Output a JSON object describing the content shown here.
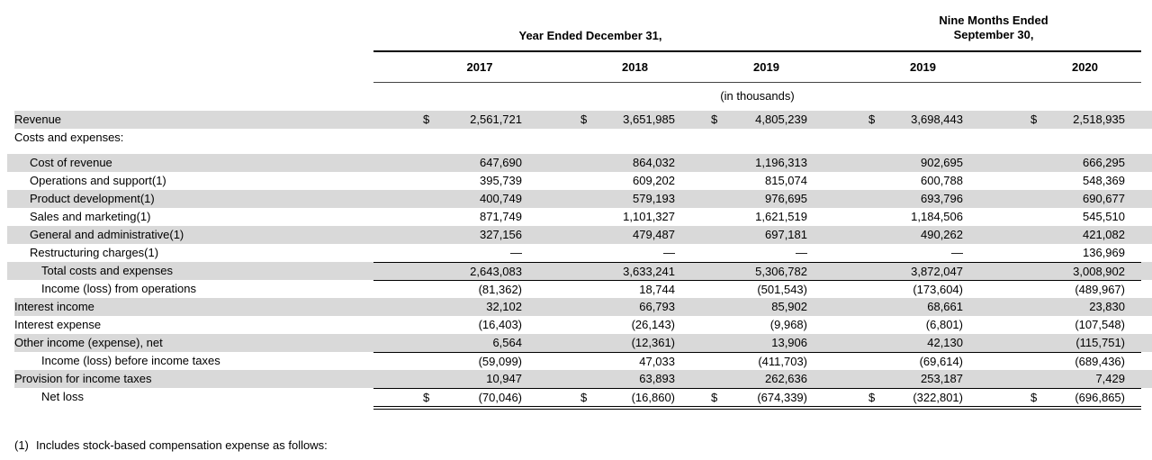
{
  "table": {
    "header": {
      "year_group_label": "Year Ended December 31,",
      "nine_month_group_line1": "Nine Months Ended",
      "nine_month_group_line2": "September 30,",
      "column_years": [
        "2017",
        "2018",
        "2019",
        "2019",
        "2020"
      ],
      "units_note": "(in thousands)"
    },
    "rows": [
      {
        "label": "Revenue",
        "indent": 0,
        "shaded": true,
        "dollar": true,
        "border_top": false,
        "double_bottom": false,
        "spacer_after": false,
        "values": [
          "2,561,721",
          "3,651,985",
          "4,805,239",
          "3,698,443",
          "2,518,935"
        ]
      },
      {
        "label": "Costs and expenses:",
        "indent": 0,
        "shaded": false,
        "dollar": false,
        "border_top": false,
        "double_bottom": false,
        "spacer_after": true,
        "values": [
          "",
          "",
          "",
          "",
          ""
        ]
      },
      {
        "label": "Cost of revenue",
        "indent": 1,
        "shaded": true,
        "dollar": false,
        "border_top": false,
        "double_bottom": false,
        "spacer_after": false,
        "values": [
          "647,690",
          "864,032",
          "1,196,313",
          "902,695",
          "666,295"
        ]
      },
      {
        "label": "Operations and support(1)",
        "indent": 1,
        "shaded": false,
        "dollar": false,
        "border_top": false,
        "double_bottom": false,
        "spacer_after": false,
        "values": [
          "395,739",
          "609,202",
          "815,074",
          "600,788",
          "548,369"
        ]
      },
      {
        "label": "Product development(1)",
        "indent": 1,
        "shaded": true,
        "dollar": false,
        "border_top": false,
        "double_bottom": false,
        "spacer_after": false,
        "values": [
          "400,749",
          "579,193",
          "976,695",
          "693,796",
          "690,677"
        ]
      },
      {
        "label": "Sales and marketing(1)",
        "indent": 1,
        "shaded": false,
        "dollar": false,
        "border_top": false,
        "double_bottom": false,
        "spacer_after": false,
        "values": [
          "871,749",
          "1,101,327",
          "1,621,519",
          "1,184,506",
          "545,510"
        ]
      },
      {
        "label": "General and administrative(1)",
        "indent": 1,
        "shaded": true,
        "dollar": false,
        "border_top": false,
        "double_bottom": false,
        "spacer_after": false,
        "values": [
          "327,156",
          "479,487",
          "697,181",
          "490,262",
          "421,082"
        ]
      },
      {
        "label": "Restructuring charges(1)",
        "indent": 1,
        "shaded": false,
        "dollar": false,
        "border_top": false,
        "double_bottom": false,
        "spacer_after": false,
        "values": [
          "—",
          "—",
          "—",
          "—",
          "136,969"
        ]
      },
      {
        "label": "Total costs and expenses",
        "indent": 2,
        "shaded": true,
        "dollar": false,
        "border_top": true,
        "double_bottom": false,
        "spacer_after": false,
        "values": [
          "2,643,083",
          "3,633,241",
          "5,306,782",
          "3,872,047",
          "3,008,902"
        ]
      },
      {
        "label": "Income (loss) from operations",
        "indent": 2,
        "shaded": false,
        "dollar": false,
        "border_top": true,
        "double_bottom": false,
        "spacer_after": false,
        "values": [
          "(81,362)",
          "18,744",
          "(501,543)",
          "(173,604)",
          "(489,967)"
        ]
      },
      {
        "label": "Interest income",
        "indent": 0,
        "shaded": true,
        "dollar": false,
        "border_top": false,
        "double_bottom": false,
        "spacer_after": false,
        "values": [
          "32,102",
          "66,793",
          "85,902",
          "68,661",
          "23,830"
        ]
      },
      {
        "label": "Interest expense",
        "indent": 0,
        "shaded": false,
        "dollar": false,
        "border_top": false,
        "double_bottom": false,
        "spacer_after": false,
        "values": [
          "(16,403)",
          "(26,143)",
          "(9,968)",
          "(6,801)",
          "(107,548)"
        ]
      },
      {
        "label": "Other income (expense), net",
        "indent": 0,
        "shaded": true,
        "dollar": false,
        "border_top": false,
        "double_bottom": false,
        "spacer_after": false,
        "values": [
          "6,564",
          "(12,361)",
          "13,906",
          "42,130",
          "(115,751)"
        ]
      },
      {
        "label": "Income (loss) before income taxes",
        "indent": 2,
        "shaded": false,
        "dollar": false,
        "border_top": true,
        "double_bottom": false,
        "spacer_after": false,
        "values": [
          "(59,099)",
          "47,033",
          "(411,703)",
          "(69,614)",
          "(689,436)"
        ]
      },
      {
        "label": "Provision for income taxes",
        "indent": 0,
        "shaded": true,
        "dollar": false,
        "border_top": false,
        "double_bottom": false,
        "spacer_after": false,
        "values": [
          "10,947",
          "63,893",
          "262,636",
          "253,187",
          "7,429"
        ]
      },
      {
        "label": "Net loss",
        "indent": 2,
        "shaded": false,
        "dollar": true,
        "border_top": true,
        "double_bottom": true,
        "spacer_after": false,
        "values": [
          "(70,046)",
          "(16,860)",
          "(674,339)",
          "(322,801)",
          "(696,865)"
        ]
      }
    ],
    "dollar_sign": "$"
  },
  "footnote": {
    "marker": "(1)",
    "text": "Includes stock-based compensation expense as follows:"
  },
  "colors": {
    "row_shade": "#d9d9d9",
    "rule_dark": "#000000",
    "rule_light": "#444444"
  }
}
